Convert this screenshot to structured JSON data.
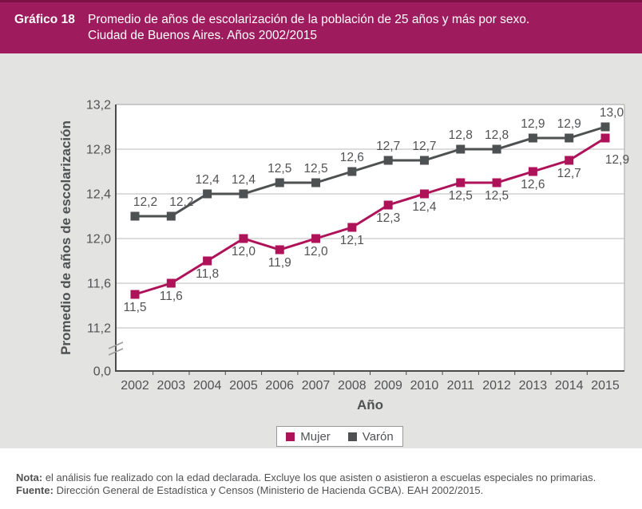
{
  "header": {
    "label": "Gráfico 18",
    "title_line1": "Promedio de años de escolarización de la población de 25 años y más por sexo.",
    "title_line2": "Ciudad de Buenos Aires. Años 2002/2015"
  },
  "colors": {
    "header_bg": "#9e1b5e",
    "header_top_edge": "#7e1245",
    "header_text": "#ffffff",
    "panel_bg": "#e3e3e2",
    "plot_bg": "#ffffff",
    "grid": "#c8c8c8",
    "plot_border": "#b2b2b2",
    "axis": "#4a4a4a",
    "tick_text": "#515254",
    "data_label_text": "#515254",
    "axis_title_text": "#4f5153",
    "legend_border": "#999999",
    "notes_text": "#515254",
    "mujer": "#ae1259",
    "varon": "#4d5151"
  },
  "chart_data": {
    "type": "line",
    "title": "Promedio de años de escolarización de la población de 25 años y más por sexo. Ciudad de Buenos Aires. Años 2002/2015",
    "xlabel": "Año",
    "ylabel": "Promedio de años de escolarización",
    "categories": [
      "2002",
      "2003",
      "2004",
      "2005",
      "2006",
      "2007",
      "2008",
      "2009",
      "2010",
      "2011",
      "2012",
      "2013",
      "2014",
      "2015"
    ],
    "series": [
      {
        "name": "Mujer",
        "color": "#ae1259",
        "label_position": "below",
        "values": [
          11.5,
          11.6,
          11.8,
          12.0,
          11.9,
          12.0,
          12.1,
          12.3,
          12.4,
          12.5,
          12.5,
          12.6,
          12.7,
          12.9
        ],
        "label_offsets": {
          "13": {
            "dx": 15,
            "dy": 11
          }
        }
      },
      {
        "name": "Varón",
        "color": "#4d5151",
        "label_position": "above",
        "values": [
          12.2,
          12.2,
          12.4,
          12.4,
          12.5,
          12.5,
          12.6,
          12.7,
          12.7,
          12.8,
          12.8,
          12.9,
          12.9,
          13.0
        ],
        "label_offsets": {
          "0": {
            "dx": 13,
            "dy": 0
          },
          "1": {
            "dx": 13,
            "dy": 0
          },
          "13": {
            "dx": 8,
            "dy": 0
          }
        }
      }
    ],
    "y_ticks": [
      "13,2",
      "12,8",
      "12,4",
      "12,0",
      "11,6",
      "11,2",
      "0,0"
    ],
    "y_axis": {
      "display_min": 11.2,
      "max": 13.2,
      "step": 0.4,
      "axis_break": true
    },
    "decimal_separator": ",",
    "grid": true,
    "legend_position": "bottom"
  },
  "notes": {
    "nota_label": "Nota:",
    "nota_text": " el análisis fue realizado con la edad declarada. Excluye los que asisten o asistieron a escuelas especiales no primarias.",
    "fuente_label": "Fuente:",
    "fuente_text": " Dirección General de Estadística y Censos (Ministerio de Hacienda GCBA). EAH 2002/2015."
  }
}
